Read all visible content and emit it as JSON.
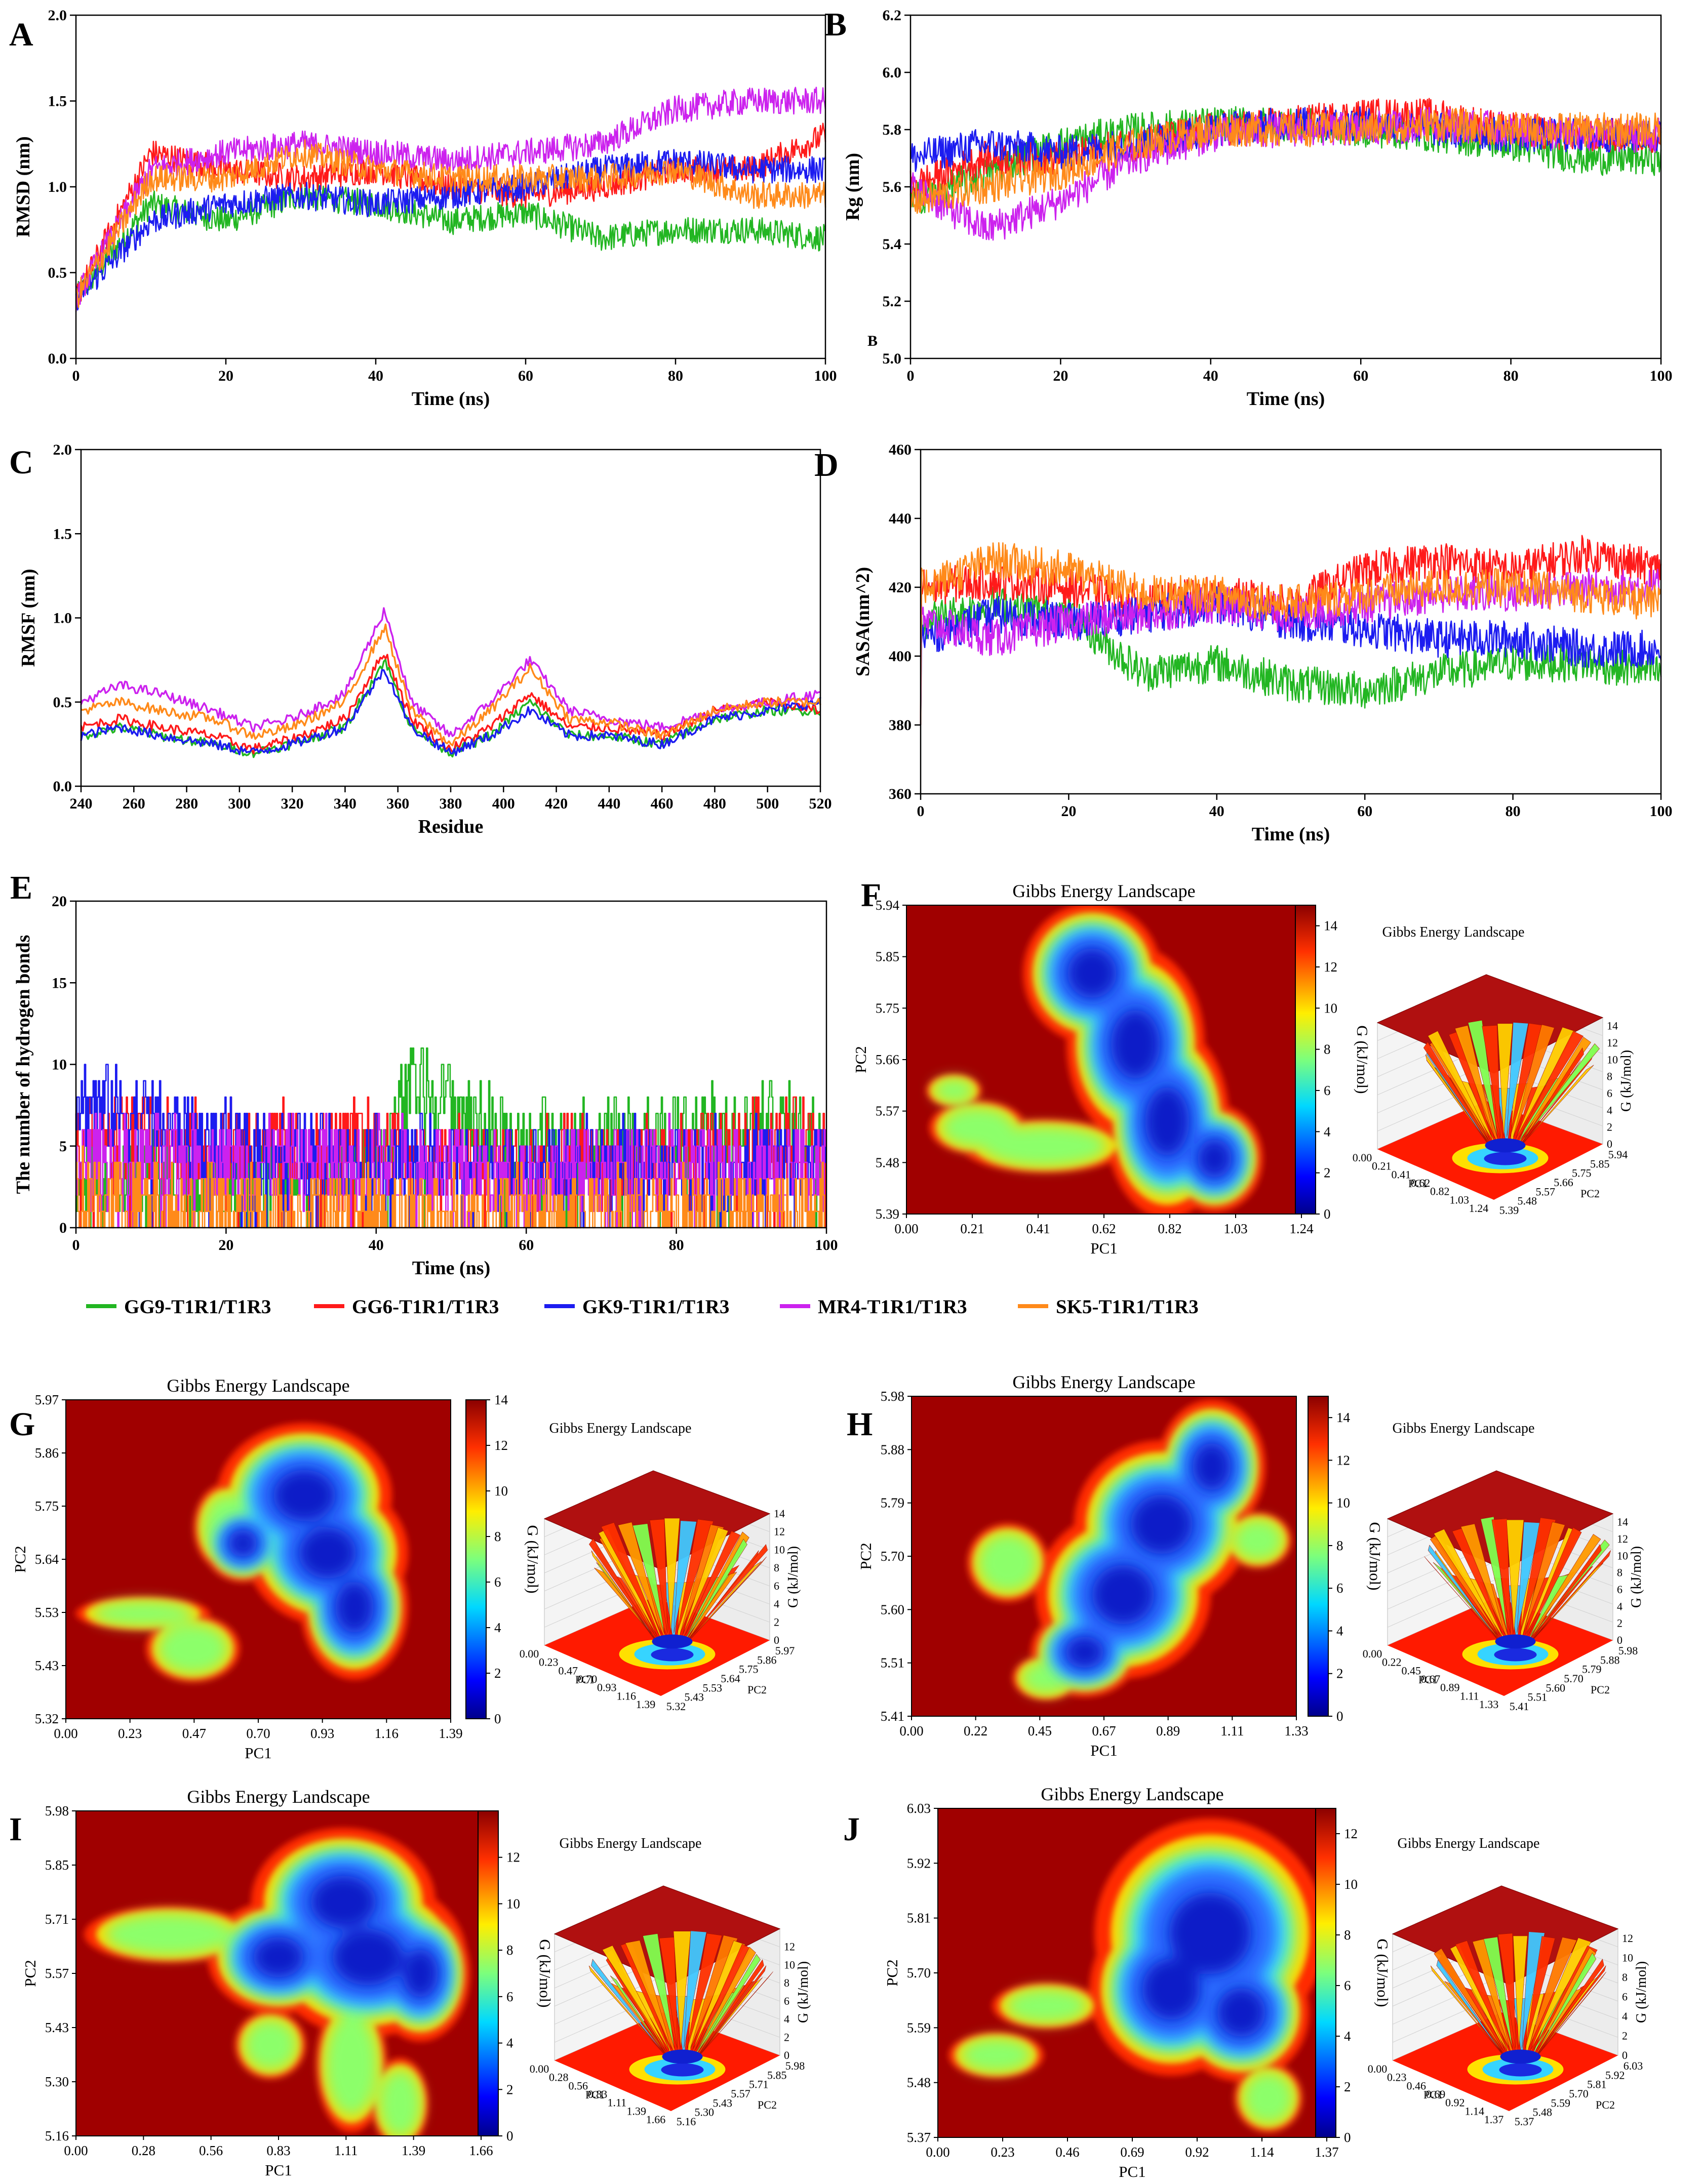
{
  "colors": {
    "GG9": "#22b622",
    "GG6": "#ff1a1a",
    "GK9": "#1c1cf0",
    "MR4": "#cc22ee",
    "SK5": "#ff8a1a"
  },
  "legend": [
    {
      "key": "GG9",
      "label": "GG9-T1R1/T1R3"
    },
    {
      "key": "GG6",
      "label": "GG6-T1R1/T1R3"
    },
    {
      "key": "GK9",
      "label": "GK9-T1R1/T1R3"
    },
    {
      "key": "MR4",
      "label": "MR4-T1R1/T1R3"
    },
    {
      "key": "SK5",
      "label": "SK5-T1R1/T1R3"
    }
  ],
  "chart_data": [
    {
      "id": "A",
      "letter": "A",
      "type": "line",
      "xlabel": "Time (ns)",
      "ylabel": "RMSD (nm)",
      "xlim": [
        0,
        100
      ],
      "ylim": [
        0,
        2.0
      ],
      "xticks": [
        "0",
        "20",
        "40",
        "60",
        "80",
        "100"
      ],
      "yticks": [
        "0.0",
        "0.5",
        "1.0",
        "1.5",
        "2.0"
      ],
      "series": [
        {
          "key": "GG9",
          "values_at_x": [
            0,
            10,
            20,
            30,
            40,
            50,
            60,
            70,
            80,
            90,
            100
          ],
          "values": [
            0.35,
            0.9,
            0.8,
            0.95,
            0.9,
            0.8,
            0.85,
            0.7,
            0.75,
            0.75,
            0.7
          ]
        },
        {
          "key": "GG6",
          "values_at_x": [
            0,
            10,
            20,
            30,
            40,
            50,
            60,
            70,
            80,
            90,
            100
          ],
          "values": [
            0.35,
            1.2,
            1.1,
            1.05,
            1.1,
            1.0,
            0.95,
            1.0,
            1.1,
            1.1,
            1.3
          ]
        },
        {
          "key": "GK9",
          "values_at_x": [
            0,
            10,
            20,
            30,
            40,
            50,
            60,
            70,
            80,
            90,
            100
          ],
          "values": [
            0.35,
            0.8,
            0.9,
            0.95,
            0.9,
            0.95,
            1.0,
            1.1,
            1.15,
            1.1,
            1.1
          ]
        },
        {
          "key": "MR4",
          "values_at_x": [
            0,
            10,
            20,
            30,
            40,
            50,
            60,
            70,
            80,
            90,
            100
          ],
          "values": [
            0.35,
            1.1,
            1.2,
            1.25,
            1.2,
            1.15,
            1.2,
            1.25,
            1.45,
            1.5,
            1.5
          ]
        },
        {
          "key": "SK5",
          "values_at_x": [
            0,
            10,
            20,
            30,
            40,
            50,
            60,
            70,
            80,
            90,
            100
          ],
          "values": [
            0.35,
            1.05,
            1.05,
            1.2,
            1.1,
            1.05,
            1.05,
            1.05,
            1.1,
            0.95,
            0.95
          ]
        }
      ]
    },
    {
      "id": "B",
      "letter": "B",
      "type": "line",
      "xlabel": "Time (ns)",
      "ylabel": "Rg (nm)",
      "xlim": [
        0,
        100
      ],
      "ylim": [
        5.0,
        6.2
      ],
      "xticks": [
        "0",
        "20",
        "40",
        "60",
        "80",
        "100"
      ],
      "yticks": [
        "5.0",
        "5.2",
        "5.4",
        "5.6",
        "5.8",
        "6.0",
        "6.2"
      ],
      "inner_label": "B",
      "series": [
        {
          "key": "GG9",
          "values_at_x": [
            0,
            10,
            20,
            30,
            40,
            50,
            60,
            70,
            80,
            90,
            100
          ],
          "values": [
            5.55,
            5.65,
            5.75,
            5.8,
            5.82,
            5.82,
            5.8,
            5.78,
            5.75,
            5.7,
            5.7
          ]
        },
        {
          "key": "GG6",
          "values_at_x": [
            0,
            10,
            20,
            30,
            40,
            50,
            60,
            70,
            80,
            90,
            100
          ],
          "values": [
            5.6,
            5.7,
            5.7,
            5.75,
            5.8,
            5.82,
            5.85,
            5.85,
            5.8,
            5.78,
            5.78
          ]
        },
        {
          "key": "GK9",
          "values_at_x": [
            0,
            10,
            20,
            30,
            40,
            50,
            60,
            70,
            80,
            90,
            100
          ],
          "values": [
            5.7,
            5.75,
            5.72,
            5.75,
            5.8,
            5.82,
            5.82,
            5.8,
            5.78,
            5.78,
            5.78
          ]
        },
        {
          "key": "MR4",
          "values_at_x": [
            0,
            10,
            20,
            30,
            40,
            50,
            60,
            70,
            80,
            90,
            100
          ],
          "values": [
            5.6,
            5.45,
            5.55,
            5.7,
            5.78,
            5.8,
            5.8,
            5.82,
            5.8,
            5.78,
            5.78
          ]
        },
        {
          "key": "SK5",
          "values_at_x": [
            0,
            10,
            20,
            30,
            40,
            50,
            60,
            70,
            80,
            90,
            100
          ],
          "values": [
            5.55,
            5.6,
            5.65,
            5.75,
            5.8,
            5.8,
            5.8,
            5.82,
            5.8,
            5.8,
            5.8
          ]
        }
      ]
    },
    {
      "id": "C",
      "letter": "C",
      "type": "line",
      "xlabel": "Residue",
      "ylabel": "RMSF (nm)",
      "xlim": [
        240,
        520
      ],
      "ylim": [
        0,
        2.0
      ],
      "xticks": [
        "240",
        "260",
        "280",
        "300",
        "320",
        "340",
        "360",
        "380",
        "400",
        "420",
        "440",
        "460",
        "480",
        "500",
        "520"
      ],
      "yticks": [
        "0.0",
        "0.5",
        "1.0",
        "1.5",
        "2.0"
      ],
      "series": [
        {
          "key": "GG9",
          "values_at_x": [
            240,
            255,
            270,
            290,
            305,
            320,
            340,
            355,
            365,
            380,
            395,
            410,
            425,
            440,
            460,
            480,
            500,
            520
          ],
          "values": [
            0.3,
            0.35,
            0.3,
            0.25,
            0.2,
            0.25,
            0.35,
            0.75,
            0.35,
            0.2,
            0.3,
            0.5,
            0.3,
            0.3,
            0.25,
            0.4,
            0.45,
            0.45
          ]
        },
        {
          "key": "GG6",
          "values_at_x": [
            240,
            255,
            270,
            290,
            305,
            320,
            340,
            355,
            365,
            380,
            395,
            410,
            425,
            440,
            460,
            480,
            500,
            520
          ],
          "values": [
            0.35,
            0.4,
            0.35,
            0.3,
            0.22,
            0.28,
            0.4,
            0.8,
            0.4,
            0.22,
            0.35,
            0.55,
            0.35,
            0.35,
            0.3,
            0.45,
            0.5,
            0.45
          ]
        },
        {
          "key": "GK9",
          "values_at_x": [
            240,
            255,
            270,
            290,
            305,
            320,
            340,
            355,
            365,
            380,
            395,
            410,
            425,
            440,
            460,
            480,
            500,
            520
          ],
          "values": [
            0.3,
            0.35,
            0.3,
            0.25,
            0.2,
            0.25,
            0.35,
            0.7,
            0.35,
            0.2,
            0.3,
            0.45,
            0.3,
            0.3,
            0.25,
            0.4,
            0.45,
            0.5
          ]
        },
        {
          "key": "MR4",
          "values_at_x": [
            240,
            255,
            270,
            290,
            305,
            320,
            340,
            355,
            365,
            380,
            395,
            410,
            425,
            440,
            460,
            480,
            500,
            520
          ],
          "values": [
            0.5,
            0.6,
            0.55,
            0.45,
            0.35,
            0.4,
            0.55,
            1.05,
            0.5,
            0.3,
            0.5,
            0.75,
            0.45,
            0.4,
            0.35,
            0.45,
            0.5,
            0.55
          ]
        },
        {
          "key": "SK5",
          "values_at_x": [
            240,
            255,
            270,
            290,
            305,
            320,
            340,
            355,
            365,
            380,
            395,
            410,
            425,
            440,
            460,
            480,
            500,
            520
          ],
          "values": [
            0.45,
            0.5,
            0.45,
            0.4,
            0.3,
            0.35,
            0.5,
            0.95,
            0.45,
            0.25,
            0.45,
            0.7,
            0.4,
            0.38,
            0.3,
            0.45,
            0.5,
            0.5
          ]
        }
      ]
    },
    {
      "id": "D",
      "letter": "D",
      "type": "line",
      "xlabel": "Time (ns)",
      "ylabel": "SASA(nm^2)",
      "xlim": [
        0,
        100
      ],
      "ylim": [
        360,
        460
      ],
      "xticks": [
        "0",
        "20",
        "40",
        "60",
        "80",
        "100"
      ],
      "yticks": [
        "360",
        "380",
        "400",
        "420",
        "440",
        "460"
      ],
      "series": [
        {
          "key": "GG9",
          "values_at_x": [
            0,
            10,
            20,
            30,
            40,
            50,
            60,
            70,
            80,
            90,
            100
          ],
          "values": [
            410,
            415,
            412,
            395,
            398,
            392,
            390,
            395,
            398,
            398,
            395
          ]
        },
        {
          "key": "GG6",
          "values_at_x": [
            0,
            10,
            20,
            30,
            40,
            50,
            60,
            70,
            80,
            90,
            100
          ],
          "values": [
            420,
            422,
            420,
            415,
            418,
            415,
            425,
            428,
            425,
            430,
            425
          ]
        },
        {
          "key": "GK9",
          "values_at_x": [
            0,
            10,
            20,
            30,
            40,
            50,
            60,
            70,
            80,
            90,
            100
          ],
          "values": [
            405,
            412,
            410,
            412,
            415,
            410,
            408,
            405,
            405,
            402,
            402
          ]
        },
        {
          "key": "MR4",
          "values_at_x": [
            0,
            10,
            20,
            30,
            40,
            50,
            60,
            70,
            80,
            90,
            100
          ],
          "values": [
            410,
            405,
            410,
            412,
            415,
            412,
            415,
            418,
            418,
            420,
            420
          ]
        },
        {
          "key": "SK5",
          "values_at_x": [
            0,
            10,
            20,
            30,
            40,
            50,
            60,
            70,
            80,
            90,
            100
          ],
          "values": [
            420,
            428,
            425,
            418,
            418,
            415,
            418,
            420,
            420,
            418,
            415
          ]
        }
      ]
    },
    {
      "id": "E",
      "letter": "E",
      "type": "line",
      "xlabel": "Time (ns)",
      "ylabel": "The number of hydrogen bonds",
      "xlim": [
        0,
        100
      ],
      "ylim": [
        0,
        20
      ],
      "xticks": [
        "0",
        "20",
        "40",
        "60",
        "80",
        "100"
      ],
      "yticks": [
        "0",
        "5",
        "10",
        "15",
        "20"
      ],
      "series": [
        {
          "key": "GG9",
          "values_at_x": [
            0,
            20,
            40,
            45,
            60,
            80,
            100
          ],
          "values": [
            3,
            3,
            4,
            9,
            5,
            6,
            6
          ]
        },
        {
          "key": "GG6",
          "values_at_x": [
            0,
            20,
            40,
            45,
            60,
            80,
            100
          ],
          "values": [
            6,
            5,
            5,
            4,
            4,
            4,
            6
          ]
        },
        {
          "key": "GK9",
          "values_at_x": [
            0,
            20,
            40,
            45,
            60,
            80,
            100
          ],
          "values": [
            8,
            5,
            4,
            4,
            4,
            4,
            4
          ]
        },
        {
          "key": "MR4",
          "values_at_x": [
            0,
            20,
            40,
            45,
            60,
            80,
            100
          ],
          "values": [
            4,
            4,
            4,
            4,
            3,
            4,
            4
          ]
        },
        {
          "key": "SK5",
          "values_at_x": [
            0,
            20,
            40,
            45,
            60,
            80,
            100
          ],
          "values": [
            2,
            1,
            1,
            1,
            1,
            1,
            1
          ]
        }
      ]
    },
    {
      "id": "F",
      "letter": "F",
      "type": "heatmap",
      "title": "Gibbs Energy Landscape",
      "xlabel": "PC1",
      "ylabel": "PC2",
      "colorbar_label": "G (kJ/mol)",
      "xticks": [
        "0.00",
        "0.21",
        "0.41",
        "0.62",
        "0.82",
        "1.03",
        "1.24"
      ],
      "yticks": [
        "5.39",
        "5.48",
        "5.57",
        "5.66",
        "5.75",
        "5.85",
        "5.94"
      ],
      "cbar_ticks": [
        "0",
        "2",
        "4",
        "6",
        "8",
        "10",
        "12",
        "14"
      ],
      "cbar_max": 15,
      "zticks_3d": [
        "0",
        "2",
        "4",
        "6",
        "8",
        "10",
        "12",
        "14"
      ],
      "title_3d": "Gibbs Energy Landscape"
    },
    {
      "id": "G",
      "letter": "G",
      "type": "heatmap",
      "title": "Gibbs Energy Landscape",
      "xlabel": "PC1",
      "ylabel": "PC2",
      "colorbar_label": "G (kJ/mol)",
      "xticks": [
        "0.00",
        "0.23",
        "0.47",
        "0.70",
        "0.93",
        "1.16",
        "1.39"
      ],
      "yticks": [
        "5.32",
        "5.43",
        "5.53",
        "5.64",
        "5.75",
        "5.86",
        "5.97"
      ],
      "cbar_ticks": [
        "0",
        "2",
        "4",
        "6",
        "8",
        "10",
        "12",
        "14"
      ],
      "cbar_max": 14,
      "zticks_3d": [
        "0",
        "2",
        "4",
        "6",
        "8",
        "10",
        "12",
        "14"
      ],
      "title_3d": "Gibbs Energy Landscape"
    },
    {
      "id": "H",
      "letter": "H",
      "type": "heatmap",
      "title": "Gibbs Energy Landscape",
      "xlabel": "PC1",
      "ylabel": "PC2",
      "colorbar_label": "G (kJ/mol)",
      "xticks": [
        "0.00",
        "0.22",
        "0.45",
        "0.67",
        "0.89",
        "1.11",
        "1.33"
      ],
      "yticks": [
        "5.41",
        "5.51",
        "5.60",
        "5.70",
        "5.79",
        "5.88",
        "5.98"
      ],
      "cbar_ticks": [
        "0",
        "2",
        "4",
        "6",
        "8",
        "10",
        "12",
        "14"
      ],
      "cbar_max": 15,
      "zticks_3d": [
        "0",
        "2",
        "4",
        "6",
        "8",
        "10",
        "12",
        "14"
      ],
      "title_3d": "Gibbs Energy Landscape"
    },
    {
      "id": "I",
      "letter": "I",
      "type": "heatmap",
      "title": "Gibbs Energy Landscape",
      "xlabel": "PC1",
      "ylabel": "PC2",
      "colorbar_label": "G (kJ/mol)",
      "xticks": [
        "0.00",
        "0.28",
        "0.56",
        "0.83",
        "1.11",
        "1.39",
        "1.66"
      ],
      "yticks": [
        "5.16",
        "5.30",
        "5.43",
        "5.57",
        "5.71",
        "5.85",
        "5.98"
      ],
      "cbar_ticks": [
        "0",
        "2",
        "4",
        "6",
        "8",
        "10",
        "12"
      ],
      "cbar_max": 14,
      "zticks_3d": [
        "0",
        "2",
        "4",
        "6",
        "8",
        "10",
        "12"
      ],
      "title_3d": "Gibbs Energy Landscape"
    },
    {
      "id": "J",
      "letter": "J",
      "type": "heatmap",
      "title": "Gibbs Energy Landscape",
      "xlabel": "PC1",
      "ylabel": "PC2",
      "colorbar_label": "G (kJ/mol)",
      "xticks": [
        "0.00",
        "0.23",
        "0.46",
        "0.69",
        "0.92",
        "1.14",
        "1.37"
      ],
      "yticks": [
        "5.37",
        "5.48",
        "5.59",
        "5.70",
        "5.81",
        "5.92",
        "6.03"
      ],
      "cbar_ticks": [
        "0",
        "2",
        "4",
        "6",
        "8",
        "10",
        "12"
      ],
      "cbar_max": 13,
      "zticks_3d": [
        "0",
        "2",
        "4",
        "6",
        "8",
        "10",
        "12"
      ],
      "title_3d": "Gibbs Energy Landscape"
    }
  ]
}
